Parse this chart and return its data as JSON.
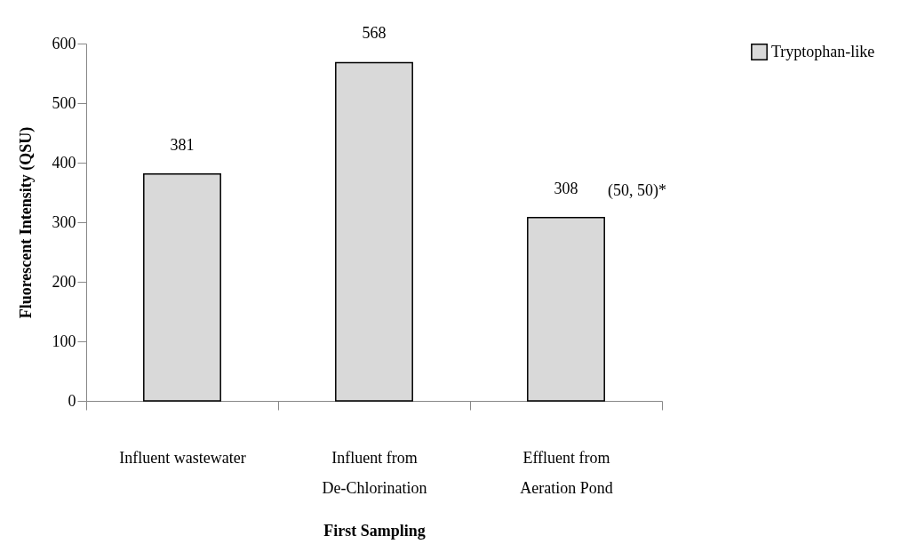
{
  "chart_data": {
    "type": "bar",
    "categories": [
      "Influent wastewater",
      "Influent from\nDe-Chlorination",
      "Effluent from\nAeration Pond"
    ],
    "series": [
      {
        "name": "Tryptophan-like",
        "color": "#d9d9d9",
        "values": [
          381,
          568,
          308
        ]
      }
    ],
    "xlabel": "First Sampling",
    "ylabel": "Fluorescent Intensity (QSU)",
    "ylim": [
      0,
      600
    ],
    "yticks": [
      0,
      100,
      200,
      300,
      400,
      500,
      600
    ],
    "data_labels": true,
    "grid": false,
    "legend": "top right",
    "annotations": [
      {
        "text": "(50, 50)*",
        "x": "Effluent from\nAeration Pond",
        "y": 308
      }
    ]
  }
}
